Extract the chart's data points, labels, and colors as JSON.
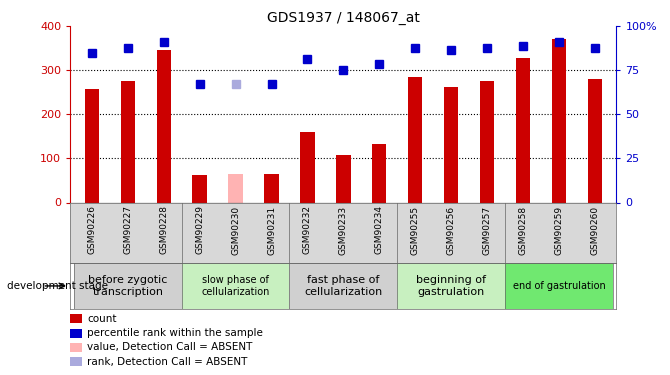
{
  "title": "GDS1937 / 148067_at",
  "samples": [
    "GSM90226",
    "GSM90227",
    "GSM90228",
    "GSM90229",
    "GSM90230",
    "GSM90231",
    "GSM90232",
    "GSM90233",
    "GSM90234",
    "GSM90255",
    "GSM90256",
    "GSM90257",
    "GSM90258",
    "GSM90259",
    "GSM90260"
  ],
  "bar_values": [
    258,
    275,
    345,
    62,
    65,
    65,
    160,
    108,
    132,
    285,
    262,
    275,
    328,
    370,
    280
  ],
  "bar_colors": [
    "#cc0000",
    "#cc0000",
    "#cc0000",
    "#cc0000",
    "#ffb3b3",
    "#cc0000",
    "#cc0000",
    "#cc0000",
    "#cc0000",
    "#cc0000",
    "#cc0000",
    "#cc0000",
    "#cc0000",
    "#cc0000",
    "#cc0000"
  ],
  "rank_values": [
    85,
    87.5,
    91.25,
    67.5,
    67.5,
    67.5,
    81.25,
    75,
    78.75,
    87.5,
    86.25,
    87.5,
    88.75,
    91.25,
    87.5
  ],
  "rank_colors": [
    "#0000cc",
    "#0000cc",
    "#0000cc",
    "#0000cc",
    "#aaaadd",
    "#0000cc",
    "#0000cc",
    "#0000cc",
    "#0000cc",
    "#0000cc",
    "#0000cc",
    "#0000cc",
    "#0000cc",
    "#0000cc",
    "#0000cc"
  ],
  "ylim_left": [
    0,
    400
  ],
  "ylim_right": [
    0,
    100
  ],
  "yticks_left": [
    0,
    100,
    200,
    300,
    400
  ],
  "yticks_right": [
    0,
    25,
    50,
    75,
    100
  ],
  "ytick_labels_right": [
    "0",
    "25",
    "50",
    "75",
    "100%"
  ],
  "grid_lines": [
    100,
    200,
    300
  ],
  "stage_groups": [
    {
      "label": "before zygotic\ntranscription",
      "samples_count": 3,
      "color": "#d0d0d0",
      "font_size": 8
    },
    {
      "label": "slow phase of\ncellularization",
      "samples_count": 3,
      "color": "#c8f0c0",
      "font_size": 7
    },
    {
      "label": "fast phase of\ncellularization",
      "samples_count": 3,
      "color": "#d0d0d0",
      "font_size": 8
    },
    {
      "label": "beginning of\ngastrulation",
      "samples_count": 3,
      "color": "#c8f0c0",
      "font_size": 8
    },
    {
      "label": "end of gastrulation",
      "samples_count": 3,
      "color": "#70e870",
      "font_size": 7
    }
  ],
  "legend_items": [
    {
      "label": "count",
      "color": "#cc0000"
    },
    {
      "label": "percentile rank within the sample",
      "color": "#0000cc"
    },
    {
      "label": "value, Detection Call = ABSENT",
      "color": "#ffb3b3"
    },
    {
      "label": "rank, Detection Call = ABSENT",
      "color": "#aaaadd"
    }
  ],
  "left_axis_color": "#cc0000",
  "right_axis_color": "#0000cc",
  "bar_width": 0.4,
  "marker_size": 6,
  "tick_bg_color": "#d8d8d8",
  "plot_bg_color": "#ffffff"
}
